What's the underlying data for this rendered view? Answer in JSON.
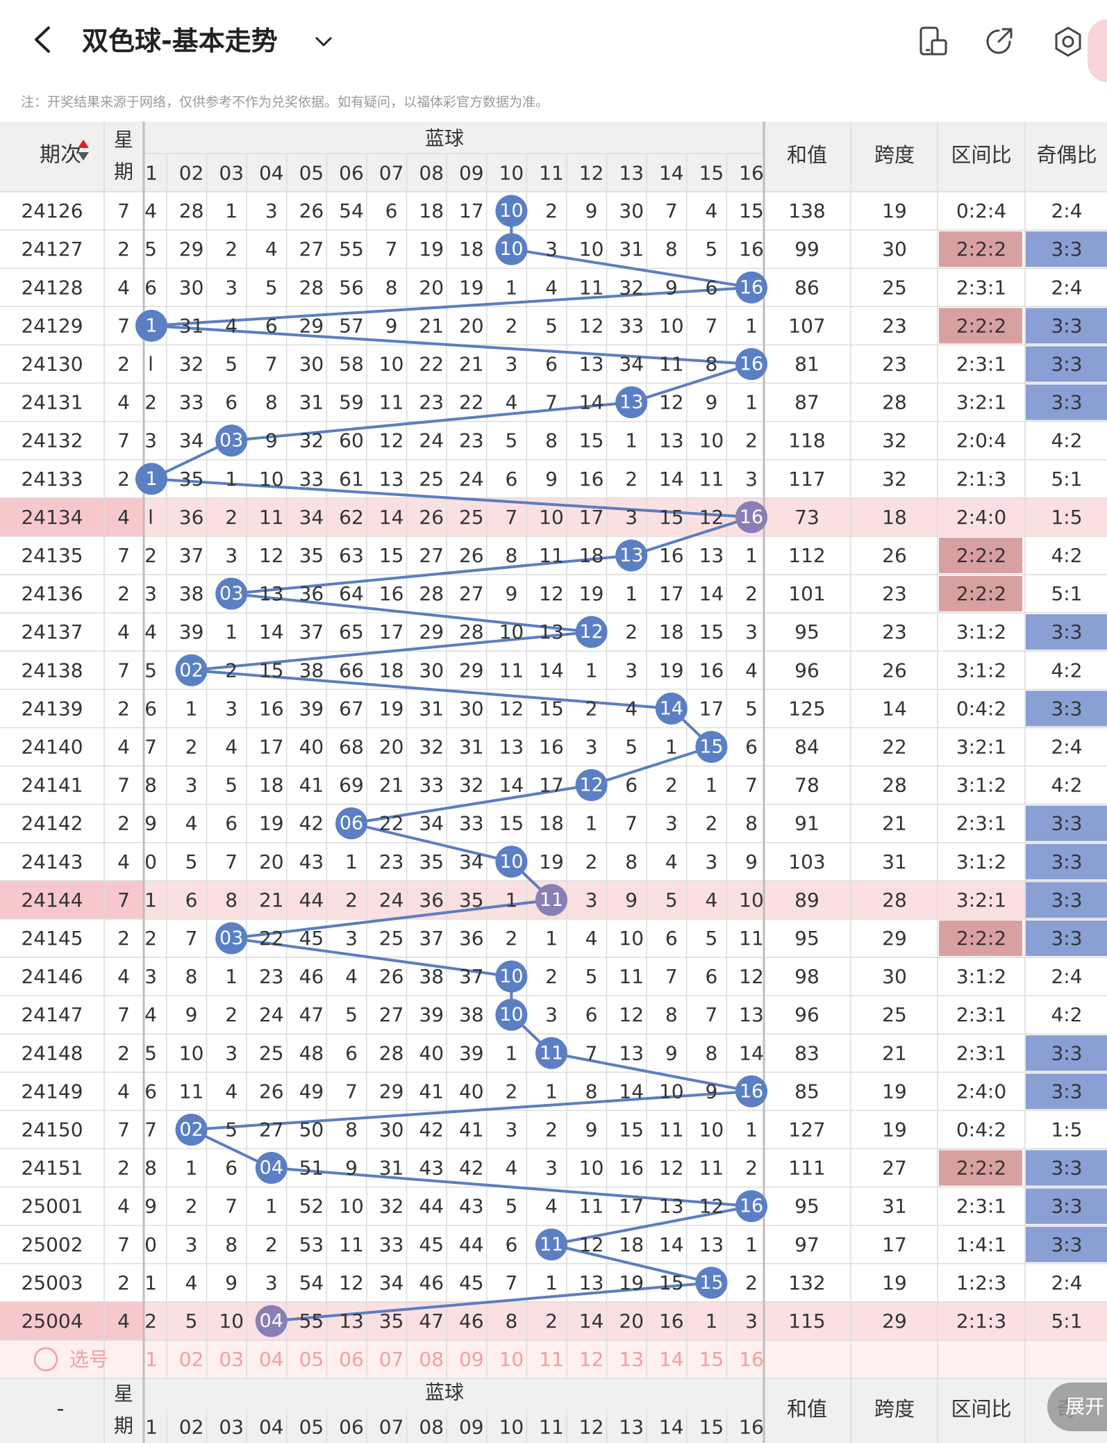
{
  "header": {
    "title": "双色球-基本走势",
    "icons": [
      "chevron-left-icon",
      "chevron-down-icon",
      "tablet-icon",
      "share-icon",
      "settings-icon"
    ]
  },
  "notice": "注：开奖结果来源于网络，仅供参考不作为兑奖依据。如有疑问，以福体彩官方数据为准。",
  "table": {
    "head": {
      "period": "期次",
      "week_top": "星",
      "week_bottom": "期",
      "blue_group": "蓝球",
      "sum": "和值",
      "span": "跨度",
      "zone": "区间比",
      "oddeven": "奇偶比"
    },
    "foot_head": {
      "period": "-",
      "week_top": "星",
      "week_bottom": "期",
      "blue_group": "蓝球",
      "sum": "和值",
      "span": "跨度",
      "zone": "区间比",
      "oddeven": "奇"
    },
    "col_labels": [
      "1",
      "02",
      "03",
      "04",
      "05",
      "06",
      "07",
      "08",
      "09",
      "10",
      "11",
      "12",
      "13",
      "14",
      "15",
      "16"
    ],
    "select_label": "选号",
    "highlighted_periods": [
      "24134",
      "24144",
      "25004"
    ],
    "rows": [
      {
        "period": "24126",
        "week": "7",
        "edge": "4",
        "cells": [
          "28",
          "1",
          "3",
          "26",
          "54",
          "6",
          "18",
          "17",
          "10",
          "2",
          "9",
          "30",
          "7",
          "4",
          "15"
        ],
        "blue": 10,
        "sum": "138",
        "span": "19",
        "zone": "0:2:4",
        "oddeven": "2:4",
        "zone_hl": false,
        "oe_hl": false
      },
      {
        "period": "24127",
        "week": "2",
        "edge": "5",
        "cells": [
          "29",
          "2",
          "4",
          "27",
          "55",
          "7",
          "19",
          "18",
          "10",
          "3",
          "10",
          "31",
          "8",
          "5",
          "16"
        ],
        "blue": 10,
        "sum": "99",
        "span": "30",
        "zone": "2:2:2",
        "oddeven": "3:3",
        "zone_hl": true,
        "oe_hl": true
      },
      {
        "period": "24128",
        "week": "4",
        "edge": "6",
        "cells": [
          "30",
          "3",
          "5",
          "28",
          "56",
          "8",
          "20",
          "19",
          "1",
          "4",
          "11",
          "32",
          "9",
          "6",
          "16"
        ],
        "blue": 16,
        "sum": "86",
        "span": "25",
        "zone": "2:3:1",
        "oddeven": "2:4",
        "zone_hl": false,
        "oe_hl": false
      },
      {
        "period": "24129",
        "week": "7",
        "edge": "1",
        "cells": [
          "31",
          "4",
          "6",
          "29",
          "57",
          "9",
          "21",
          "20",
          "2",
          "5",
          "12",
          "33",
          "10",
          "7",
          "1"
        ],
        "blue": 1,
        "sum": "107",
        "span": "23",
        "zone": "2:2:2",
        "oddeven": "3:3",
        "zone_hl": true,
        "oe_hl": true
      },
      {
        "period": "24130",
        "week": "2",
        "edge": "l",
        "cells": [
          "32",
          "5",
          "7",
          "30",
          "58",
          "10",
          "22",
          "21",
          "3",
          "6",
          "13",
          "34",
          "11",
          "8",
          "16"
        ],
        "blue": 16,
        "sum": "81",
        "span": "23",
        "zone": "2:3:1",
        "oddeven": "3:3",
        "zone_hl": false,
        "oe_hl": true
      },
      {
        "period": "24131",
        "week": "4",
        "edge": "2",
        "cells": [
          "33",
          "6",
          "8",
          "31",
          "59",
          "11",
          "23",
          "22",
          "4",
          "7",
          "14",
          "13",
          "12",
          "9",
          "1"
        ],
        "blue": 13,
        "sum": "87",
        "span": "28",
        "zone": "3:2:1",
        "oddeven": "3:3",
        "zone_hl": false,
        "oe_hl": true
      },
      {
        "period": "24132",
        "week": "7",
        "edge": "3",
        "cells": [
          "34",
          "03",
          "9",
          "32",
          "60",
          "12",
          "24",
          "23",
          "5",
          "8",
          "15",
          "1",
          "13",
          "10",
          "2"
        ],
        "blue": 3,
        "sum": "118",
        "span": "32",
        "zone": "2:0:4",
        "oddeven": "4:2",
        "zone_hl": false,
        "oe_hl": false
      },
      {
        "period": "24133",
        "week": "2",
        "edge": "1",
        "cells": [
          "35",
          "1",
          "10",
          "33",
          "61",
          "13",
          "25",
          "24",
          "6",
          "9",
          "16",
          "2",
          "14",
          "11",
          "3"
        ],
        "blue": 1,
        "sum": "117",
        "span": "32",
        "zone": "2:1:3",
        "oddeven": "5:1",
        "zone_hl": false,
        "oe_hl": false
      },
      {
        "period": "24134",
        "week": "4",
        "edge": "l",
        "cells": [
          "36",
          "2",
          "11",
          "34",
          "62",
          "14",
          "26",
          "25",
          "7",
          "10",
          "17",
          "3",
          "15",
          "12",
          "16"
        ],
        "blue": 16,
        "sum": "73",
        "span": "18",
        "zone": "2:4:0",
        "oddeven": "1:5",
        "zone_hl": false,
        "oe_hl": false
      },
      {
        "period": "24135",
        "week": "7",
        "edge": "2",
        "cells": [
          "37",
          "3",
          "12",
          "35",
          "63",
          "15",
          "27",
          "26",
          "8",
          "11",
          "18",
          "13",
          "16",
          "13",
          "1"
        ],
        "blue": 13,
        "sum": "112",
        "span": "26",
        "zone": "2:2:2",
        "oddeven": "4:2",
        "zone_hl": true,
        "oe_hl": false
      },
      {
        "period": "24136",
        "week": "2",
        "edge": "3",
        "cells": [
          "38",
          "03",
          "13",
          "36",
          "64",
          "16",
          "28",
          "27",
          "9",
          "12",
          "19",
          "1",
          "17",
          "14",
          "2"
        ],
        "blue": 3,
        "sum": "101",
        "span": "23",
        "zone": "2:2:2",
        "oddeven": "5:1",
        "zone_hl": true,
        "oe_hl": false
      },
      {
        "period": "24137",
        "week": "4",
        "edge": "4",
        "cells": [
          "39",
          "1",
          "14",
          "37",
          "65",
          "17",
          "29",
          "28",
          "10",
          "13",
          "12",
          "2",
          "18",
          "15",
          "3"
        ],
        "blue": 12,
        "sum": "95",
        "span": "23",
        "zone": "3:1:2",
        "oddeven": "3:3",
        "zone_hl": false,
        "oe_hl": true
      },
      {
        "period": "24138",
        "week": "7",
        "edge": "5",
        "cells": [
          "02",
          "2",
          "15",
          "38",
          "66",
          "18",
          "30",
          "29",
          "11",
          "14",
          "1",
          "3",
          "19",
          "16",
          "4"
        ],
        "blue": 2,
        "sum": "96",
        "span": "26",
        "zone": "3:1:2",
        "oddeven": "4:2",
        "zone_hl": false,
        "oe_hl": false
      },
      {
        "period": "24139",
        "week": "2",
        "edge": "6",
        "cells": [
          "1",
          "3",
          "16",
          "39",
          "67",
          "19",
          "31",
          "30",
          "12",
          "15",
          "2",
          "4",
          "14",
          "17",
          "5"
        ],
        "blue": 14,
        "sum": "125",
        "span": "14",
        "zone": "0:4:2",
        "oddeven": "3:3",
        "zone_hl": false,
        "oe_hl": true
      },
      {
        "period": "24140",
        "week": "4",
        "edge": "7",
        "cells": [
          "2",
          "4",
          "17",
          "40",
          "68",
          "20",
          "32",
          "31",
          "13",
          "16",
          "3",
          "5",
          "1",
          "15",
          "6"
        ],
        "blue": 15,
        "sum": "84",
        "span": "22",
        "zone": "3:2:1",
        "oddeven": "2:4",
        "zone_hl": false,
        "oe_hl": false
      },
      {
        "period": "24141",
        "week": "7",
        "edge": "8",
        "cells": [
          "3",
          "5",
          "18",
          "41",
          "69",
          "21",
          "33",
          "32",
          "14",
          "17",
          "12",
          "6",
          "2",
          "1",
          "7"
        ],
        "blue": 12,
        "sum": "78",
        "span": "28",
        "zone": "3:1:2",
        "oddeven": "4:2",
        "zone_hl": false,
        "oe_hl": false
      },
      {
        "period": "24142",
        "week": "2",
        "edge": "9",
        "cells": [
          "4",
          "6",
          "19",
          "42",
          "06",
          "22",
          "34",
          "33",
          "15",
          "18",
          "1",
          "7",
          "3",
          "2",
          "8"
        ],
        "blue": 6,
        "sum": "91",
        "span": "21",
        "zone": "2:3:1",
        "oddeven": "3:3",
        "zone_hl": false,
        "oe_hl": true
      },
      {
        "period": "24143",
        "week": "4",
        "edge": "0",
        "cells": [
          "5",
          "7",
          "20",
          "43",
          "1",
          "23",
          "35",
          "34",
          "10",
          "19",
          "2",
          "8",
          "4",
          "3",
          "9"
        ],
        "blue": 10,
        "sum": "103",
        "span": "31",
        "zone": "3:1:2",
        "oddeven": "3:3",
        "zone_hl": false,
        "oe_hl": true
      },
      {
        "period": "24144",
        "week": "7",
        "edge": "1",
        "cells": [
          "6",
          "8",
          "21",
          "44",
          "2",
          "24",
          "36",
          "35",
          "1",
          "11",
          "3",
          "9",
          "5",
          "4",
          "10"
        ],
        "blue": 11,
        "sum": "89",
        "span": "28",
        "zone": "3:2:1",
        "oddeven": "3:3",
        "zone_hl": false,
        "oe_hl": true
      },
      {
        "period": "24145",
        "week": "2",
        "edge": "2",
        "cells": [
          "7",
          "03",
          "22",
          "45",
          "3",
          "25",
          "37",
          "36",
          "2",
          "1",
          "4",
          "10",
          "6",
          "5",
          "11"
        ],
        "blue": 3,
        "sum": "95",
        "span": "29",
        "zone": "2:2:2",
        "oddeven": "3:3",
        "zone_hl": true,
        "oe_hl": true
      },
      {
        "period": "24146",
        "week": "4",
        "edge": "3",
        "cells": [
          "8",
          "1",
          "23",
          "46",
          "4",
          "26",
          "38",
          "37",
          "10",
          "2",
          "5",
          "11",
          "7",
          "6",
          "12"
        ],
        "blue": 10,
        "sum": "98",
        "span": "30",
        "zone": "3:1:2",
        "oddeven": "2:4",
        "zone_hl": false,
        "oe_hl": false
      },
      {
        "period": "24147",
        "week": "7",
        "edge": "4",
        "cells": [
          "9",
          "2",
          "24",
          "47",
          "5",
          "27",
          "39",
          "38",
          "10",
          "3",
          "6",
          "12",
          "8",
          "7",
          "13"
        ],
        "blue": 10,
        "sum": "96",
        "span": "25",
        "zone": "2:3:1",
        "oddeven": "4:2",
        "zone_hl": false,
        "oe_hl": false
      },
      {
        "period": "24148",
        "week": "2",
        "edge": "5",
        "cells": [
          "10",
          "3",
          "25",
          "48",
          "6",
          "28",
          "40",
          "39",
          "1",
          "11",
          "7",
          "13",
          "9",
          "8",
          "14"
        ],
        "blue": 11,
        "sum": "83",
        "span": "21",
        "zone": "2:3:1",
        "oddeven": "3:3",
        "zone_hl": false,
        "oe_hl": true
      },
      {
        "period": "24149",
        "week": "4",
        "edge": "6",
        "cells": [
          "11",
          "4",
          "26",
          "49",
          "7",
          "29",
          "41",
          "40",
          "2",
          "1",
          "8",
          "14",
          "10",
          "9",
          "16"
        ],
        "blue": 16,
        "sum": "85",
        "span": "19",
        "zone": "2:4:0",
        "oddeven": "3:3",
        "zone_hl": false,
        "oe_hl": true
      },
      {
        "period": "24150",
        "week": "7",
        "edge": "7",
        "cells": [
          "02",
          "5",
          "27",
          "50",
          "8",
          "30",
          "42",
          "41",
          "3",
          "2",
          "9",
          "15",
          "11",
          "10",
          "1"
        ],
        "blue": 2,
        "sum": "127",
        "span": "19",
        "zone": "0:4:2",
        "oddeven": "1:5",
        "zone_hl": false,
        "oe_hl": false
      },
      {
        "period": "24151",
        "week": "2",
        "edge": "8",
        "cells": [
          "1",
          "6",
          "04",
          "51",
          "9",
          "31",
          "43",
          "42",
          "4",
          "3",
          "10",
          "16",
          "12",
          "11",
          "2"
        ],
        "blue": 4,
        "sum": "111",
        "span": "27",
        "zone": "2:2:2",
        "oddeven": "3:3",
        "zone_hl": true,
        "oe_hl": true
      },
      {
        "period": "25001",
        "week": "4",
        "edge": "9",
        "cells": [
          "2",
          "7",
          "1",
          "52",
          "10",
          "32",
          "44",
          "43",
          "5",
          "4",
          "11",
          "17",
          "13",
          "12",
          "16"
        ],
        "blue": 16,
        "sum": "95",
        "span": "31",
        "zone": "2:3:1",
        "oddeven": "3:3",
        "zone_hl": false,
        "oe_hl": true
      },
      {
        "period": "25002",
        "week": "7",
        "edge": "0",
        "cells": [
          "3",
          "8",
          "2",
          "53",
          "11",
          "33",
          "45",
          "44",
          "6",
          "11",
          "12",
          "18",
          "14",
          "13",
          "1"
        ],
        "blue": 11,
        "sum": "97",
        "span": "17",
        "zone": "1:4:1",
        "oddeven": "3:3",
        "zone_hl": false,
        "oe_hl": true
      },
      {
        "period": "25003",
        "week": "2",
        "edge": "1",
        "cells": [
          "4",
          "9",
          "3",
          "54",
          "12",
          "34",
          "46",
          "45",
          "7",
          "1",
          "13",
          "19",
          "15",
          "15",
          "2"
        ],
        "blue": 15,
        "sum": "132",
        "span": "19",
        "zone": "1:2:3",
        "oddeven": "2:4",
        "zone_hl": false,
        "oe_hl": false
      },
      {
        "period": "25004",
        "week": "4",
        "edge": "2",
        "cells": [
          "5",
          "10",
          "04",
          "55",
          "13",
          "35",
          "47",
          "46",
          "8",
          "2",
          "14",
          "20",
          "16",
          "1",
          "3"
        ],
        "blue": 4,
        "sum": "115",
        "span": "29",
        "zone": "2:1:3",
        "oddeven": "5:1",
        "zone_hl": false,
        "oe_hl": false
      }
    ]
  },
  "fab_label": "展开",
  "colors": {
    "blue_ball": "#5b7fc4",
    "purple_ball": "#8a7fb4",
    "line": "#5c7dc0",
    "zone_highlight": "#d9a0a2",
    "oddeven_highlight": "#8a9fd4",
    "row_highlight": "#fbe0e2",
    "header_bg": "#f0f0f0",
    "select_row_bg": "#fdf0ee",
    "select_text": "#f0a0a0"
  }
}
